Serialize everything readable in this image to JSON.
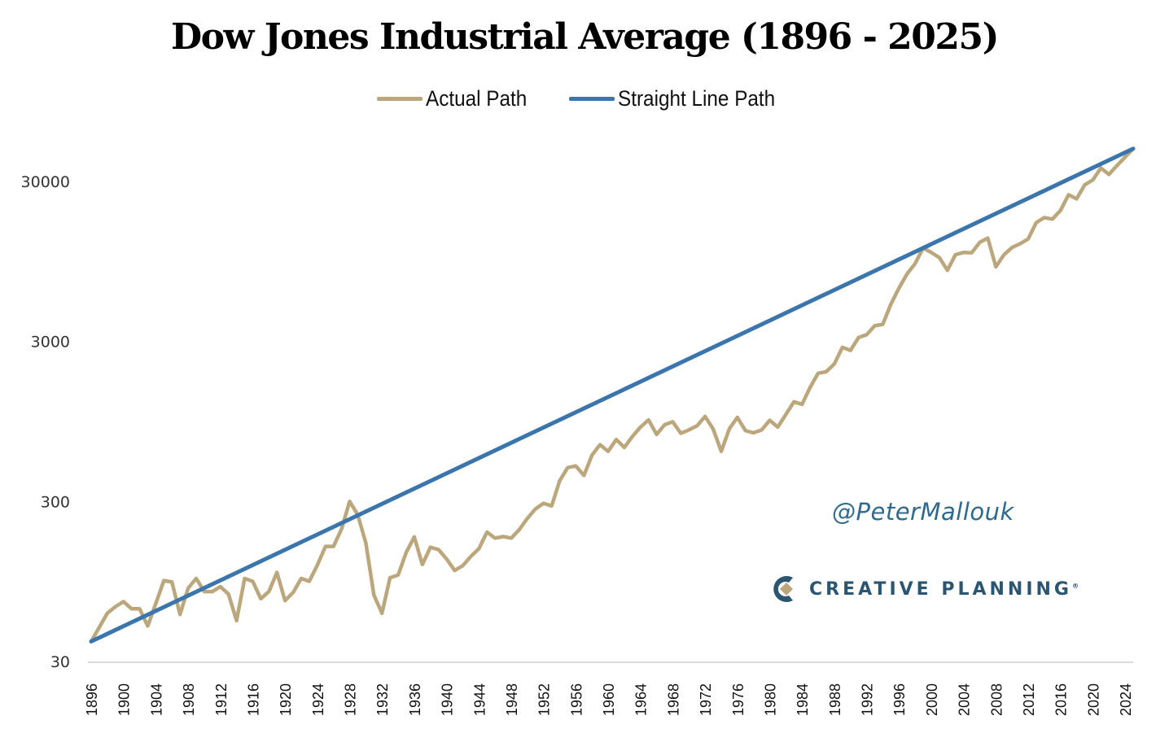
{
  "chart_data": {
    "type": "line",
    "title": "Dow Jones Industrial Average (1896 - 2025)",
    "xlabel": "",
    "ylabel": "",
    "yscale": "log",
    "ylim": [
      30,
      60000
    ],
    "yticks": [
      30,
      300,
      3000,
      30000
    ],
    "ytick_labels": [
      "30",
      "300",
      "3000",
      "30000"
    ],
    "xlim": [
      1896,
      2025
    ],
    "xticks": [
      1896,
      1900,
      1904,
      1908,
      1912,
      1916,
      1920,
      1924,
      1928,
      1932,
      1936,
      1940,
      1944,
      1948,
      1952,
      1956,
      1960,
      1964,
      1968,
      1972,
      1976,
      1980,
      1984,
      1988,
      1992,
      1996,
      2000,
      2004,
      2008,
      2012,
      2016,
      2020,
      2024
    ],
    "grid": false,
    "legend": {
      "placement": "top-center",
      "entries": [
        "Actual Path",
        "Straight Line Path"
      ]
    },
    "series": [
      {
        "name": "Actual Path",
        "color": "#bba77b",
        "x": [
          1896,
          1897,
          1898,
          1899,
          1900,
          1901,
          1902,
          1903,
          1904,
          1905,
          1906,
          1907,
          1908,
          1909,
          1910,
          1911,
          1912,
          1913,
          1914,
          1915,
          1916,
          1917,
          1918,
          1919,
          1920,
          1921,
          1922,
          1923,
          1924,
          1925,
          1926,
          1927,
          1928,
          1929,
          1930,
          1931,
          1932,
          1933,
          1934,
          1935,
          1936,
          1937,
          1938,
          1939,
          1940,
          1941,
          1942,
          1943,
          1944,
          1945,
          1946,
          1947,
          1948,
          1949,
          1950,
          1951,
          1952,
          1953,
          1954,
          1955,
          1956,
          1957,
          1958,
          1959,
          1960,
          1961,
          1962,
          1963,
          1964,
          1965,
          1966,
          1967,
          1968,
          1969,
          1970,
          1971,
          1972,
          1973,
          1974,
          1975,
          1976,
          1977,
          1978,
          1979,
          1980,
          1981,
          1982,
          1983,
          1984,
          1985,
          1986,
          1987,
          1988,
          1989,
          1990,
          1991,
          1992,
          1993,
          1994,
          1995,
          1996,
          1997,
          1998,
          1999,
          2000,
          2001,
          2002,
          2003,
          2004,
          2005,
          2006,
          2007,
          2008,
          2009,
          2010,
          2011,
          2012,
          2013,
          2014,
          2015,
          2016,
          2017,
          2018,
          2019,
          2020,
          2021,
          2022,
          2023,
          2024,
          2025
        ],
        "values": [
          40,
          49,
          60,
          66,
          71,
          64,
          64,
          50,
          69,
          96,
          94,
          59,
          86,
          99,
          82,
          82,
          88,
          79,
          54,
          99,
          95,
          74,
          82,
          108,
          72,
          81,
          99,
          95,
          120,
          157,
          157,
          202,
          300,
          248,
          165,
          78,
          60,
          100,
          104,
          144,
          180,
          121,
          155,
          150,
          131,
          111,
          119,
          136,
          152,
          193,
          177,
          181,
          177,
          200,
          235,
          269,
          292,
          281,
          404,
          488,
          500,
          436,
          584,
          679,
          616,
          731,
          652,
          763,
          874,
          969,
          786,
          905,
          944,
          800,
          839,
          890,
          1020,
          851,
          616,
          852,
          1005,
          831,
          805,
          839,
          964,
          875,
          1047,
          1259,
          1212,
          1547,
          1896,
          1939,
          2169,
          2753,
          2634,
          3169,
          3301,
          3754,
          3834,
          5117,
          6448,
          7908,
          9181,
          11497,
          10787,
          10022,
          8342,
          10454,
          10783,
          10718,
          12463,
          13265,
          8776,
          10428,
          11578,
          12218,
          13104,
          16577,
          17823,
          17425,
          19763,
          24719,
          23327,
          28538,
          30606,
          36338,
          33147,
          37690,
          42544,
          48000
        ]
      },
      {
        "name": "Straight Line Path",
        "color": "#3a75ad",
        "x": [
          1896,
          2025
        ],
        "values": [
          40,
          48000
        ]
      }
    ]
  },
  "watermark": {
    "handle": "@PeterMallouk",
    "brand": "CREATIVE PLANNING",
    "brand_mark": "®"
  }
}
